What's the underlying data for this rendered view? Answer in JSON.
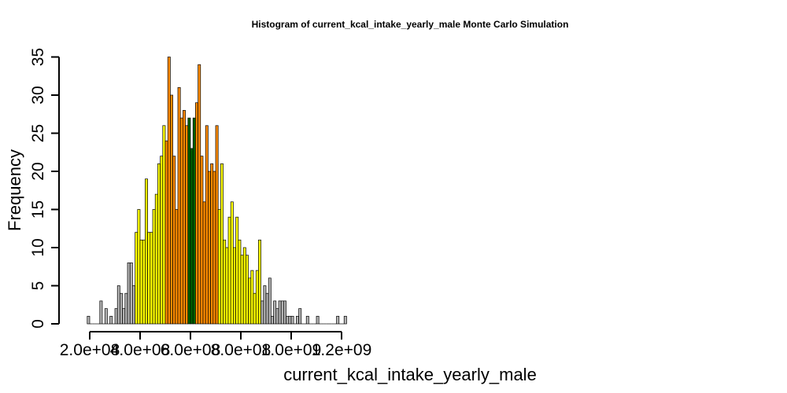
{
  "chart_data": {
    "type": "bar",
    "title": "Histogram of  current_kcal_intake_yearly_male  Monte Carlo Simulation",
    "xlabel": "current_kcal_intake_yearly_male",
    "ylabel": "Frequency",
    "xlim": [
      200000000,
      1230000000
    ],
    "ylim": [
      0,
      35
    ],
    "grid": false,
    "x_ticks": [
      200000000,
      400000000,
      600000000,
      800000000,
      1000000000,
      1200000000
    ],
    "x_tick_labels": [
      "2.0e+08",
      "4.0e+08",
      "6.0e+08",
      "8.0e+08",
      "1.0e+09",
      "1.2e+09"
    ],
    "y_ticks": [
      0,
      5,
      10,
      15,
      20,
      25,
      30,
      35
    ],
    "y_tick_labels": [
      "0",
      "5",
      "10",
      "15",
      "20",
      "25",
      "30",
      "35"
    ],
    "bin_start": 190000000,
    "bin_width": 10000000,
    "colors": {
      "gray": "#b3b3b3",
      "yellow": "#ffff00",
      "orange": "#ff8c00",
      "green": "#006400"
    },
    "values": [
      1,
      0,
      0,
      0,
      0,
      3,
      0,
      2,
      0,
      1,
      0,
      2,
      5,
      4,
      2,
      4,
      8,
      8,
      5,
      12,
      15,
      11,
      11,
      19,
      12,
      12,
      15,
      17,
      21,
      22,
      26,
      24,
      35,
      30,
      22,
      15,
      31,
      27,
      28,
      26,
      27,
      23,
      27,
      29,
      34,
      22,
      16,
      26,
      20,
      21,
      20,
      26,
      15,
      21,
      11,
      10,
      14,
      16,
      10,
      14,
      11,
      9,
      10,
      9,
      6,
      7,
      4,
      7,
      11,
      3,
      5,
      4,
      6,
      1,
      3,
      2,
      3,
      3,
      3,
      1,
      1,
      1,
      0,
      1,
      2,
      0,
      0,
      1,
      0,
      0,
      0,
      1,
      0,
      0,
      0,
      0,
      0,
      0,
      0,
      1,
      0,
      0,
      1
    ],
    "bin_colors": [
      "gray",
      "gray",
      "gray",
      "gray",
      "gray",
      "gray",
      "gray",
      "gray",
      "gray",
      "gray",
      "gray",
      "gray",
      "gray",
      "gray",
      "gray",
      "gray",
      "gray",
      "gray",
      "gray",
      "yellow",
      "yellow",
      "yellow",
      "yellow",
      "yellow",
      "yellow",
      "yellow",
      "yellow",
      "yellow",
      "yellow",
      "yellow",
      "yellow",
      "orange",
      "orange",
      "orange",
      "orange",
      "orange",
      "orange",
      "orange",
      "orange",
      "orange",
      "green",
      "green",
      "green",
      "orange",
      "orange",
      "orange",
      "orange",
      "orange",
      "orange",
      "orange",
      "orange",
      "orange",
      "yellow",
      "yellow",
      "yellow",
      "yellow",
      "yellow",
      "yellow",
      "yellow",
      "yellow",
      "yellow",
      "yellow",
      "yellow",
      "yellow",
      "yellow",
      "yellow",
      "yellow",
      "yellow",
      "yellow",
      "gray",
      "gray",
      "gray",
      "gray",
      "gray",
      "gray",
      "gray",
      "gray",
      "gray",
      "gray",
      "gray",
      "gray",
      "gray",
      "gray",
      "gray",
      "gray",
      "gray",
      "gray",
      "gray",
      "gray",
      "gray",
      "gray",
      "gray",
      "gray",
      "gray",
      "gray",
      "gray",
      "gray",
      "gray",
      "gray",
      "gray",
      "gray",
      "gray",
      "gray",
      "gray",
      "gray"
    ]
  }
}
